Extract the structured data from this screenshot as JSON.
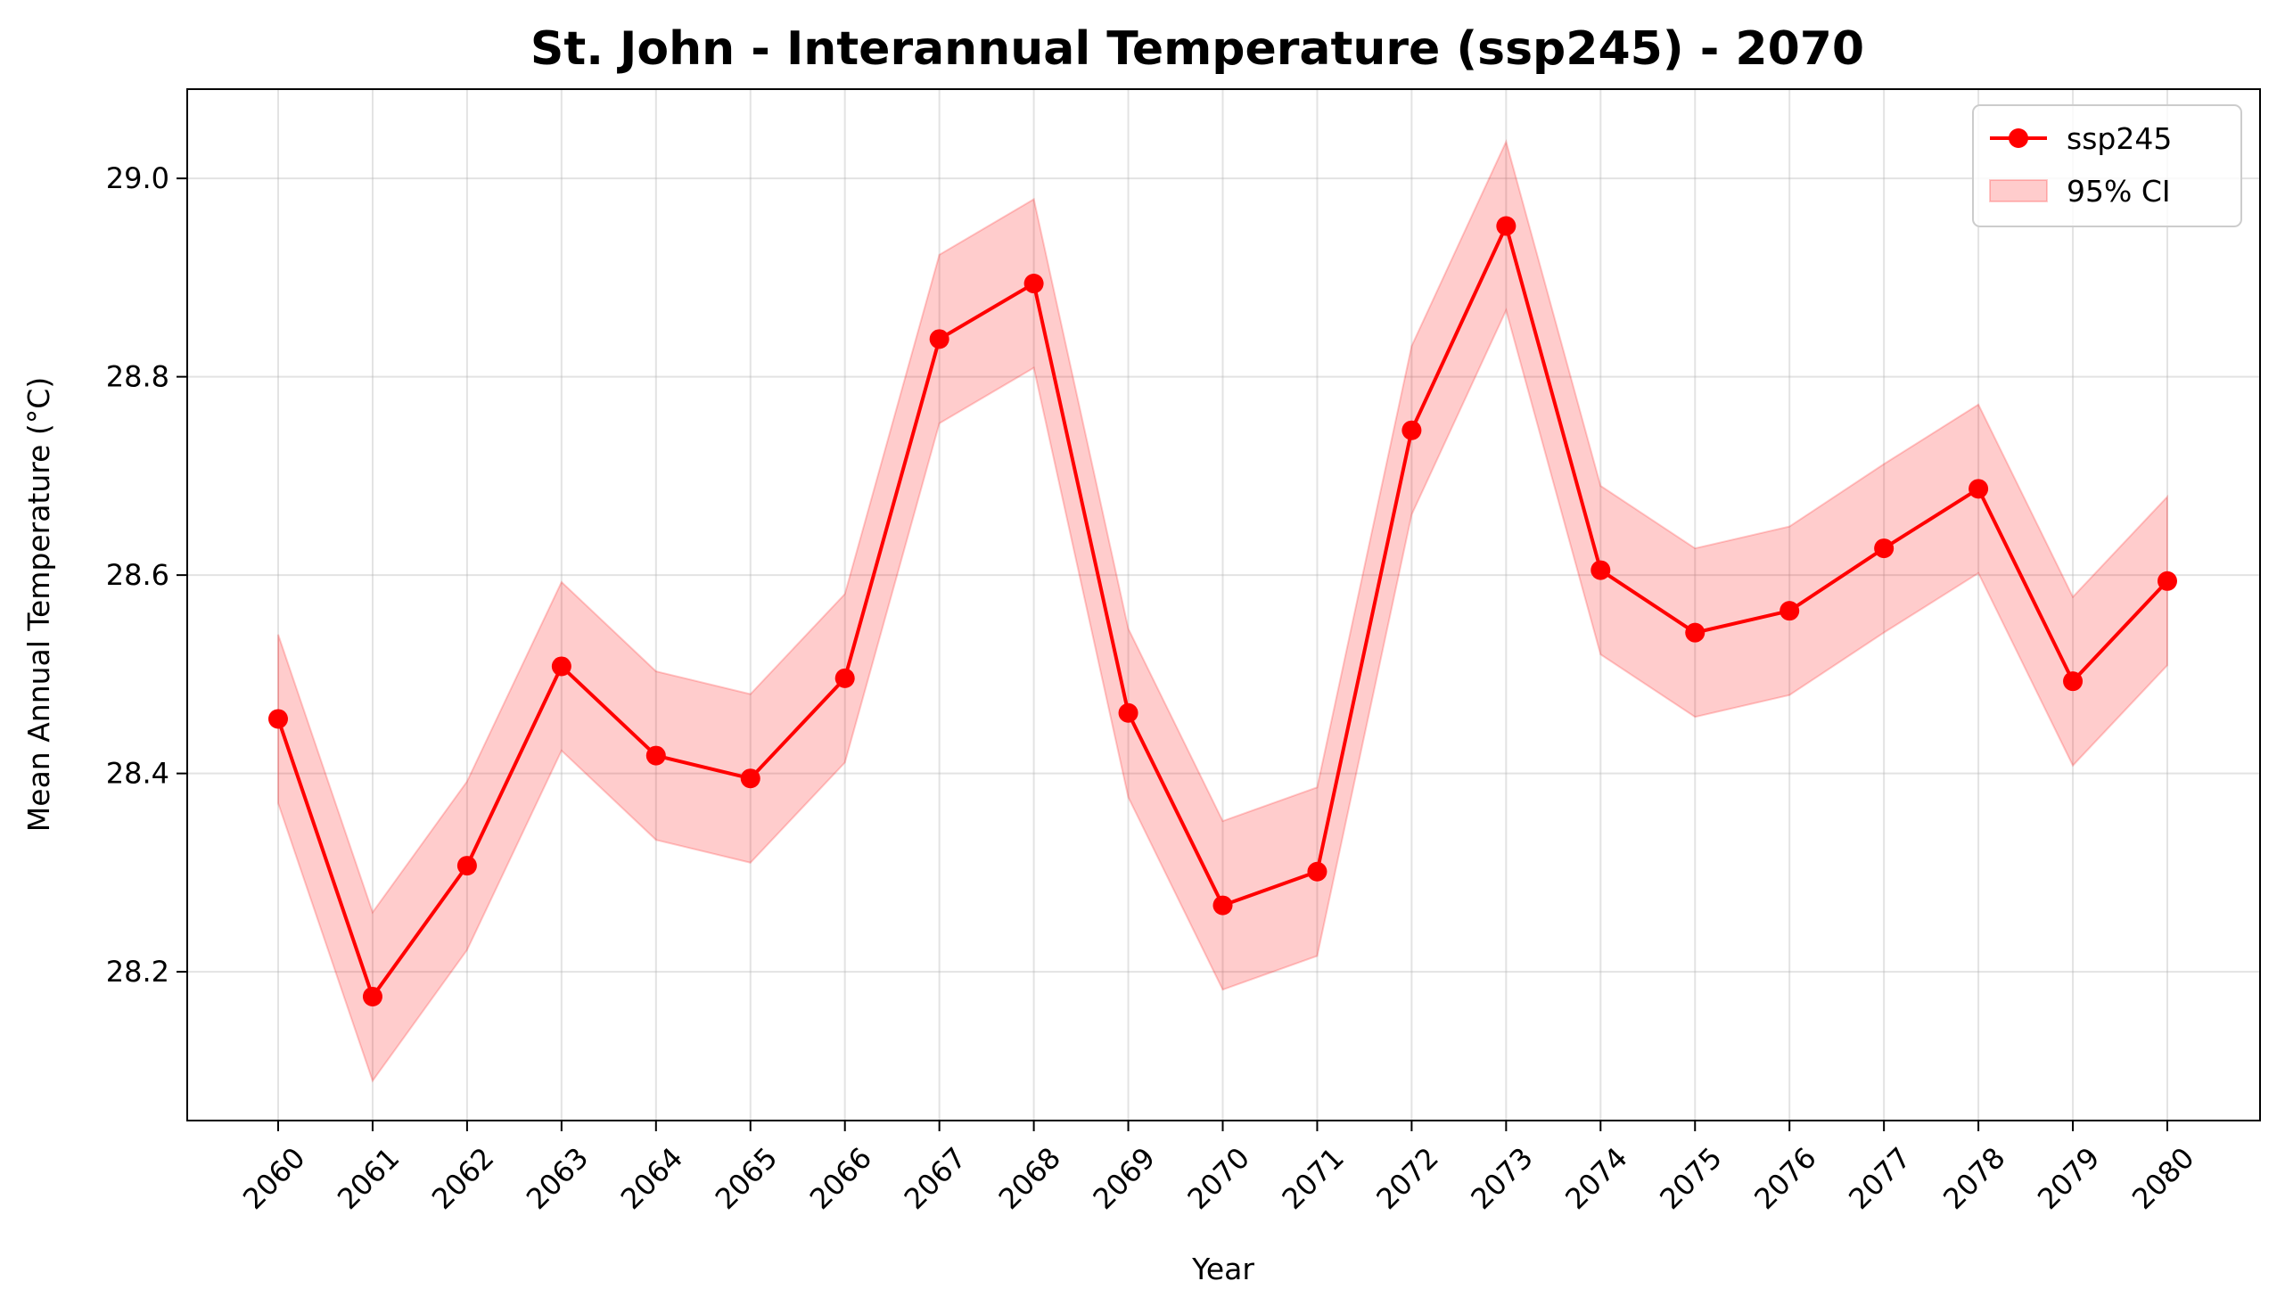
{
  "chart_data": {
    "type": "line",
    "title": "St. John - Interannual Temperature (ssp245) - 2070",
    "xlabel": "Year",
    "ylabel": "Mean Annual Temperature (°C)",
    "x": [
      "2060",
      "2061",
      "2062",
      "2063",
      "2064",
      "2065",
      "2066",
      "2067",
      "2068",
      "2069",
      "2070",
      "2071",
      "2072",
      "2073",
      "2074",
      "2075",
      "2076",
      "2077",
      "2078",
      "2079",
      "2080"
    ],
    "ylim": [
      28.05,
      29.09
    ],
    "yticks": [
      "28.2",
      "28.4",
      "28.6",
      "28.8",
      "29.0"
    ],
    "grid": true,
    "legend_position": "top-right",
    "series": [
      {
        "name": "ssp245",
        "color": "#ff0000",
        "values": [
          28.455,
          28.175,
          28.307,
          28.508,
          28.418,
          28.395,
          28.496,
          28.838,
          28.894,
          28.461,
          28.267,
          28.301,
          28.746,
          28.952,
          28.605,
          28.542,
          28.564,
          28.627,
          28.687,
          28.493,
          28.594
        ]
      }
    ],
    "ci_band": {
      "name": "95% CI",
      "color": "#ff0000",
      "lower": [
        28.37,
        28.09,
        28.222,
        28.423,
        28.333,
        28.31,
        28.411,
        28.753,
        28.809,
        28.376,
        28.182,
        28.216,
        28.661,
        28.867,
        28.52,
        28.457,
        28.479,
        28.542,
        28.602,
        28.408,
        28.509
      ],
      "upper": [
        28.54,
        28.26,
        28.392,
        28.593,
        28.503,
        28.48,
        28.581,
        28.923,
        28.979,
        28.546,
        28.352,
        28.386,
        28.831,
        29.037,
        28.69,
        28.627,
        28.649,
        28.712,
        28.772,
        28.578,
        28.679
      ]
    }
  }
}
